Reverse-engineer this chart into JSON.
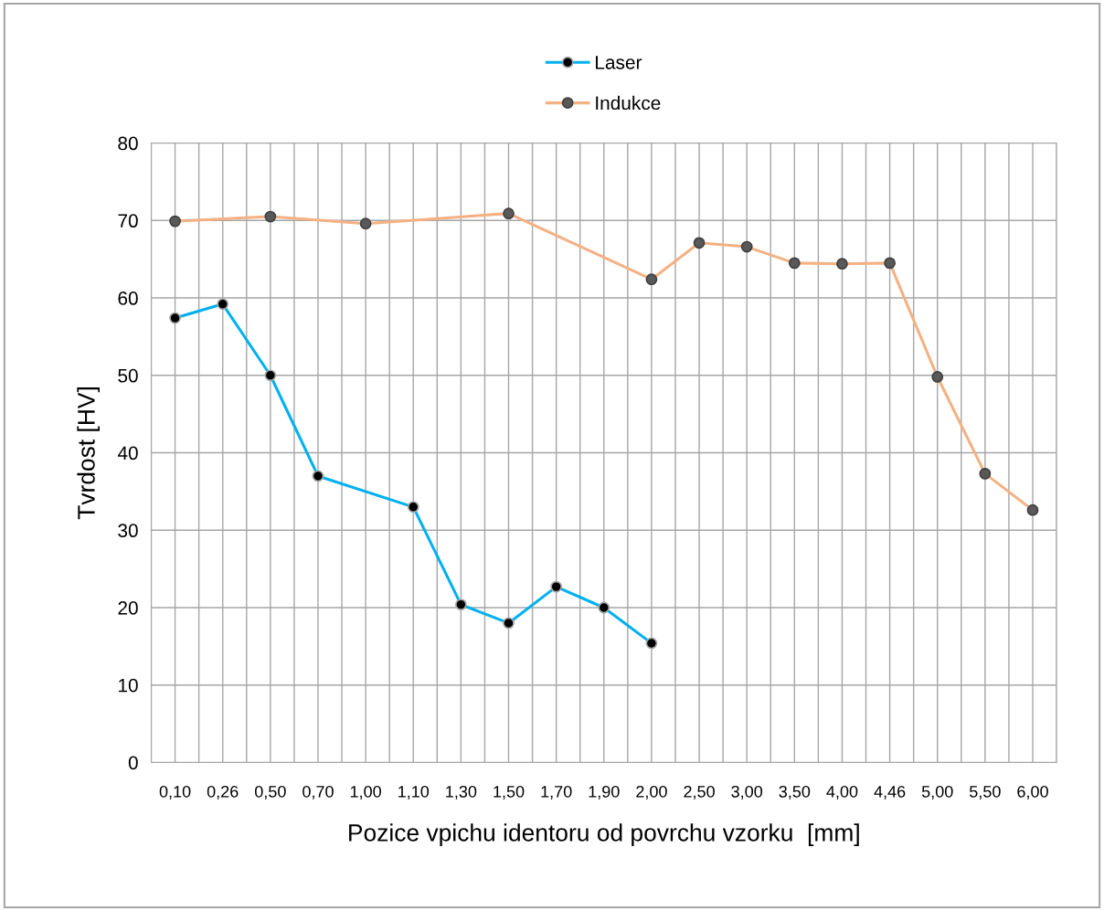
{
  "chart_data": {
    "type": "line",
    "xlabel": "Pozice vpichu identoru od povrchu vzorku  [mm]",
    "ylabel": "Tvrdost [HV]",
    "categories": [
      "0,10",
      "0,26",
      "0,50",
      "0,70",
      "1,00",
      "1,10",
      "1,30",
      "1,50",
      "1,70",
      "1,90",
      "2,00",
      "2,50",
      "3,00",
      "3,50",
      "4,00",
      "4,46",
      "5,00",
      "5,50",
      "6,00"
    ],
    "series": [
      {
        "name": "Laser",
        "color": "#00b0f0",
        "values": [
          57.4,
          59.2,
          50.0,
          37.0,
          null,
          33.0,
          20.4,
          18.0,
          22.7,
          20.0,
          15.4,
          null,
          null,
          null,
          null,
          null,
          null,
          null,
          null
        ]
      },
      {
        "name": "Indukce",
        "color": "#f4b183",
        "values": [
          69.9,
          null,
          70.5,
          null,
          69.6,
          null,
          null,
          70.9,
          null,
          null,
          62.4,
          67.1,
          66.6,
          64.5,
          64.4,
          64.5,
          49.8,
          37.3,
          32.6
        ]
      }
    ],
    "ylim": [
      0,
      80
    ],
    "yticks": [
      0,
      10,
      20,
      30,
      40,
      50,
      60,
      70,
      80
    ],
    "grid": true,
    "legend": "top",
    "marker": "circle",
    "line_style": "solid"
  }
}
